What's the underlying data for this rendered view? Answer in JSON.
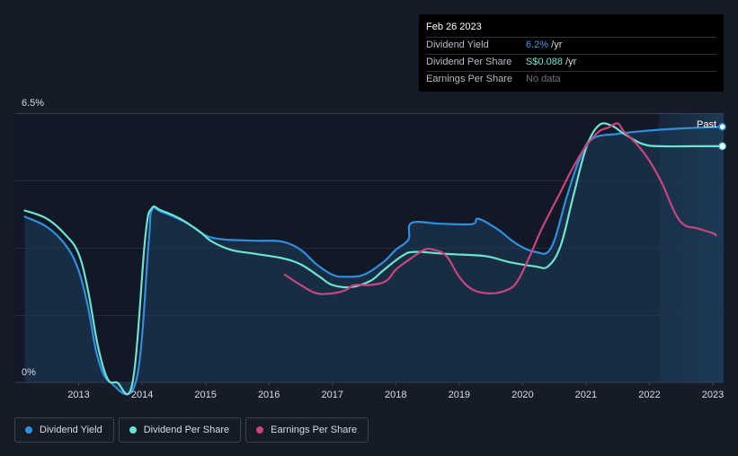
{
  "tooltip": {
    "date": "Feb 26 2023",
    "rows": [
      {
        "label": "Dividend Yield",
        "value": "6.2%",
        "unit": " /yr"
      },
      {
        "label": "Dividend Per Share",
        "value": "S$0.088",
        "unit": " /yr"
      },
      {
        "label": "Earnings Per Share",
        "value": "No data",
        "unit": ""
      }
    ]
  },
  "legend": {
    "items": [
      {
        "label": "Dividend Yield",
        "color": "#2f8fe0"
      },
      {
        "label": "Dividend Per Share",
        "color": "#6ce5d0"
      },
      {
        "label": "Earnings Per Share",
        "color": "#c9457e"
      }
    ]
  },
  "chart_data": {
    "type": "line",
    "title": "",
    "past_label": "Past",
    "y_labels": {
      "top": "6.5%",
      "bottom": "0%"
    },
    "ylim": [
      0,
      6.5
    ],
    "xlim": [
      2012.0,
      2023.17
    ],
    "x_ticks": [
      2013,
      2014,
      2015,
      2016,
      2017,
      2018,
      2019,
      2020,
      2021,
      2022,
      2023
    ],
    "forecast_start": 2022.15,
    "series": [
      {
        "name": "Dividend Yield",
        "color": "#2f8fe0",
        "area": true,
        "end_marker": true,
        "points": [
          [
            2012.15,
            4.0
          ],
          [
            2012.5,
            3.75
          ],
          [
            2012.8,
            3.3
          ],
          [
            2013.0,
            2.7
          ],
          [
            2013.15,
            1.8
          ],
          [
            2013.3,
            0.6
          ],
          [
            2013.5,
            0.0
          ],
          [
            2013.9,
            0.0
          ],
          [
            2014.1,
            3.3
          ],
          [
            2014.15,
            4.15
          ],
          [
            2014.3,
            4.12
          ],
          [
            2014.7,
            3.85
          ],
          [
            2015.0,
            3.55
          ],
          [
            2015.3,
            3.45
          ],
          [
            2015.8,
            3.42
          ],
          [
            2016.2,
            3.4
          ],
          [
            2016.5,
            3.2
          ],
          [
            2016.75,
            2.85
          ],
          [
            2017.0,
            2.6
          ],
          [
            2017.2,
            2.55
          ],
          [
            2017.5,
            2.6
          ],
          [
            2017.8,
            2.9
          ],
          [
            2018.0,
            3.2
          ],
          [
            2018.2,
            3.45
          ],
          [
            2018.25,
            3.85
          ],
          [
            2018.7,
            3.83
          ],
          [
            2019.2,
            3.82
          ],
          [
            2019.3,
            3.95
          ],
          [
            2019.6,
            3.7
          ],
          [
            2019.9,
            3.35
          ],
          [
            2020.2,
            3.15
          ],
          [
            2020.45,
            3.25
          ],
          [
            2020.7,
            4.5
          ],
          [
            2020.9,
            5.4
          ],
          [
            2021.1,
            5.88
          ],
          [
            2021.5,
            6.0
          ],
          [
            2022.0,
            6.08
          ],
          [
            2022.5,
            6.13
          ],
          [
            2023.0,
            6.16
          ],
          [
            2023.15,
            6.17
          ]
        ]
      },
      {
        "name": "Dividend Per Share",
        "color": "#6ce5d0",
        "area": false,
        "end_marker": true,
        "points": [
          [
            2012.15,
            4.15
          ],
          [
            2012.5,
            3.95
          ],
          [
            2012.8,
            3.55
          ],
          [
            2013.0,
            3.1
          ],
          [
            2013.15,
            2.2
          ],
          [
            2013.3,
            0.9
          ],
          [
            2013.45,
            0.1
          ],
          [
            2013.6,
            0.0
          ],
          [
            2013.85,
            0.0
          ],
          [
            2014.05,
            3.5
          ],
          [
            2014.15,
            4.2
          ],
          [
            2014.3,
            4.15
          ],
          [
            2014.6,
            3.95
          ],
          [
            2014.9,
            3.65
          ],
          [
            2015.1,
            3.4
          ],
          [
            2015.4,
            3.2
          ],
          [
            2015.8,
            3.1
          ],
          [
            2016.2,
            3.0
          ],
          [
            2016.5,
            2.85
          ],
          [
            2016.8,
            2.55
          ],
          [
            2017.0,
            2.35
          ],
          [
            2017.3,
            2.3
          ],
          [
            2017.6,
            2.45
          ],
          [
            2017.8,
            2.7
          ],
          [
            2018.1,
            3.05
          ],
          [
            2018.3,
            3.15
          ],
          [
            2018.8,
            3.1
          ],
          [
            2019.4,
            3.05
          ],
          [
            2019.8,
            2.9
          ],
          [
            2020.2,
            2.8
          ],
          [
            2020.4,
            2.8
          ],
          [
            2020.6,
            3.3
          ],
          [
            2020.8,
            4.5
          ],
          [
            2021.0,
            5.65
          ],
          [
            2021.2,
            6.2
          ],
          [
            2021.4,
            6.2
          ],
          [
            2021.6,
            6.0
          ],
          [
            2021.9,
            5.75
          ],
          [
            2022.2,
            5.7
          ],
          [
            2022.7,
            5.7
          ],
          [
            2023.15,
            5.7
          ]
        ]
      },
      {
        "name": "Earnings Per Share",
        "color": "#c9457e",
        "area": false,
        "end_marker": false,
        "points": [
          [
            2016.25,
            2.6
          ],
          [
            2016.5,
            2.35
          ],
          [
            2016.75,
            2.15
          ],
          [
            2017.0,
            2.15
          ],
          [
            2017.2,
            2.22
          ],
          [
            2017.35,
            2.35
          ],
          [
            2017.6,
            2.35
          ],
          [
            2017.85,
            2.45
          ],
          [
            2018.0,
            2.72
          ],
          [
            2018.2,
            2.95
          ],
          [
            2018.45,
            3.2
          ],
          [
            2018.6,
            3.2
          ],
          [
            2018.8,
            3.05
          ],
          [
            2019.0,
            2.55
          ],
          [
            2019.2,
            2.25
          ],
          [
            2019.45,
            2.15
          ],
          [
            2019.7,
            2.2
          ],
          [
            2019.9,
            2.4
          ],
          [
            2020.1,
            3.0
          ],
          [
            2020.3,
            3.7
          ],
          [
            2020.6,
            4.6
          ],
          [
            2020.8,
            5.2
          ],
          [
            2021.0,
            5.7
          ],
          [
            2021.2,
            6.05
          ],
          [
            2021.35,
            6.15
          ],
          [
            2021.5,
            6.25
          ],
          [
            2021.6,
            6.05
          ],
          [
            2021.8,
            5.75
          ],
          [
            2022.0,
            5.35
          ],
          [
            2022.2,
            4.8
          ],
          [
            2022.4,
            4.1
          ],
          [
            2022.55,
            3.8
          ],
          [
            2022.75,
            3.72
          ],
          [
            2023.0,
            3.6
          ],
          [
            2023.05,
            3.55
          ]
        ]
      }
    ]
  }
}
